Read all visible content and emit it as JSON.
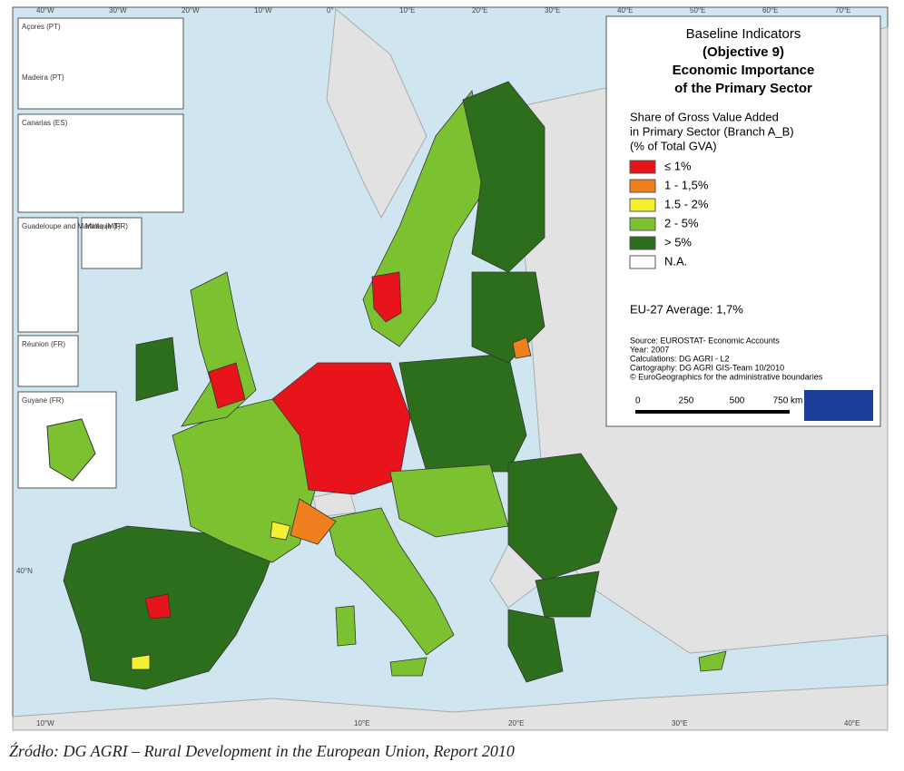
{
  "map": {
    "graticule_top": [
      "40°W",
      "30°W",
      "20°W",
      "10°W",
      "0°",
      "10°E",
      "20°E",
      "30°E",
      "40°E",
      "50°E",
      "60°E",
      "70°E"
    ],
    "graticule_bottom": [
      "10°W",
      "10°E",
      "20°E",
      "30°E",
      "40°E"
    ],
    "graticule_left": [
      "40°N"
    ],
    "insets": [
      "Açores (PT)",
      "Madeira (PT)",
      "Canarias (ES)",
      "Guadeloupe and Martinique (FR)",
      "Malta (MT)",
      "Réunion (FR)",
      "Guyane (FR)"
    ]
  },
  "legend": {
    "title": [
      "Baseline Indicators",
      "(Objective 9)",
      "Economic Importance",
      "of the Primary Sector"
    ],
    "subtitle": [
      "Share of Gross Value Added",
      "in Primary Sector (Branch A_B)",
      "(% of Total GVA)"
    ],
    "items": [
      {
        "label": "≤ 1%",
        "color": "#e8141c"
      },
      {
        "label": "1 - 1,5%",
        "color": "#f07f1e"
      },
      {
        "label": "1.5 - 2%",
        "color": "#f5f032"
      },
      {
        "label": "2 - 5%",
        "color": "#7cc230"
      },
      {
        "label": "> 5%",
        "color": "#2d6e1c"
      },
      {
        "label": "N.A.",
        "color": "#ffffff"
      }
    ],
    "average": "EU-27 Average: 1,7%",
    "source": [
      "Source: EUROSTAT- Economic Accounts",
      "Year: 2007",
      "Calculations: DG AGRI - L2",
      "Cartography: DG AGRI GIS-Team 10/2010",
      "© EuroGeographics for the administrative boundaries"
    ],
    "scale": [
      "0",
      "250",
      "500",
      "750 km"
    ]
  },
  "caption": "Źródło: DG AGRI – Rural Development in the European Union, Report 2010"
}
